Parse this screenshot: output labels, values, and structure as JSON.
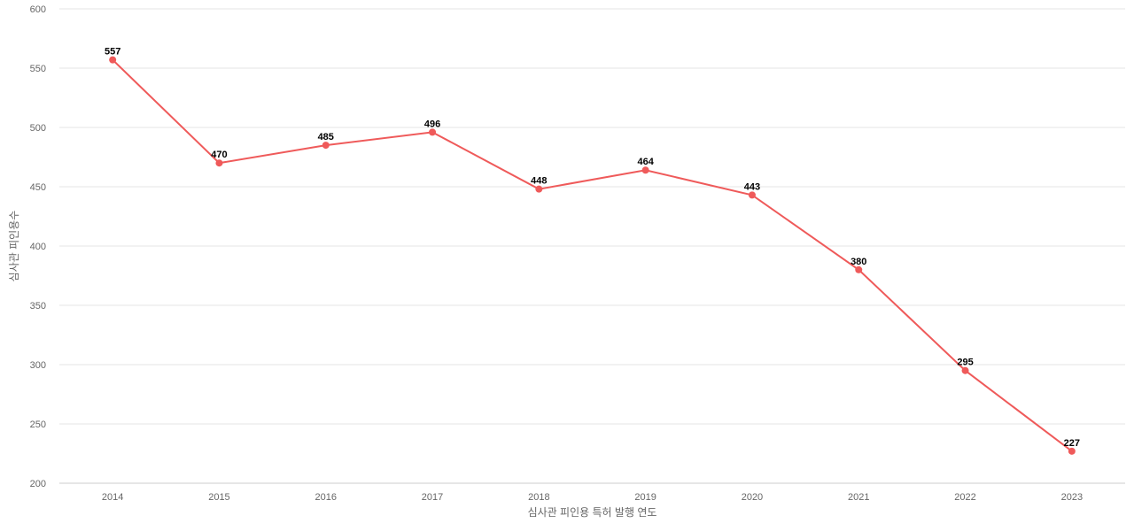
{
  "chart_data": {
    "type": "line",
    "xlabel": "심사관 피인용 특허 발행 연도",
    "ylabel": "심사관 피인용수",
    "categories": [
      "2014",
      "2015",
      "2016",
      "2017",
      "2018",
      "2019",
      "2020",
      "2021",
      "2022",
      "2023"
    ],
    "series": [
      {
        "values": [
          557,
          470,
          485,
          496,
          448,
          464,
          443,
          380,
          295,
          227
        ],
        "color": "#ef5a5a"
      }
    ],
    "ylim": [
      200,
      600
    ],
    "yticks": [
      200,
      250,
      300,
      350,
      400,
      450,
      500,
      550,
      600
    ],
    "grid": true,
    "legend": "none"
  }
}
